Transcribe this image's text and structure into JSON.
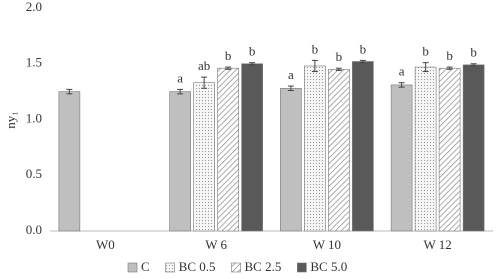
{
  "chart_data": {
    "type": "bar",
    "ylabel": "ny₁",
    "categories": [
      "W0",
      "W 6",
      "W 10",
      "W 12"
    ],
    "series": [
      {
        "name": "C",
        "color": "#bfbfbf",
        "pattern": "solid",
        "values": [
          1.25,
          1.25,
          1.28,
          1.31
        ],
        "errors": [
          0.02,
          0.02,
          0.02,
          0.02
        ],
        "labels": [
          null,
          "a",
          "a",
          "a"
        ]
      },
      {
        "name": "BC 0.5",
        "color": "#f2f2f2",
        "pattern": "dots",
        "values": [
          null,
          1.33,
          1.48,
          1.47
        ],
        "errors": [
          null,
          0.05,
          0.05,
          0.04
        ],
        "labels": [
          null,
          "ab",
          "b",
          "b"
        ]
      },
      {
        "name": "BC 2.5",
        "color": "#ffffff",
        "pattern": "hatch",
        "values": [
          null,
          1.46,
          1.45,
          1.46
        ],
        "errors": [
          null,
          0.01,
          0.01,
          0.01
        ],
        "labels": [
          null,
          "b",
          "b",
          "b"
        ]
      },
      {
        "name": "BC 5.0",
        "color": "#595959",
        "pattern": "solid",
        "values": [
          null,
          1.5,
          1.52,
          1.49
        ],
        "errors": [
          null,
          0.01,
          0.01,
          0.01
        ],
        "labels": [
          null,
          "b",
          "b",
          "b"
        ]
      }
    ],
    "ylim": [
      0,
      2
    ],
    "yticks": [
      {
        "value": 0,
        "label": "0.0"
      },
      0.5,
      {
        "value": 1,
        "label": "1.0"
      },
      1.5,
      {
        "value": 2,
        "label": "2.0"
      }
    ],
    "grid": false
  }
}
